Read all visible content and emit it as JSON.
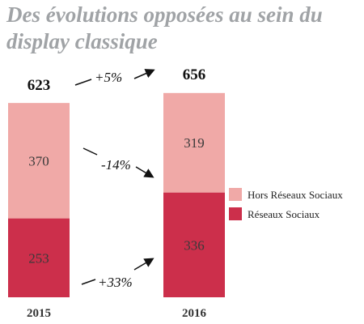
{
  "chart_data": {
    "type": "bar",
    "stacked": true,
    "title": "Des évolutions opposées au sein du display classique",
    "categories": [
      "2015",
      "2016"
    ],
    "series": [
      {
        "name": "Réseaux Sociaux",
        "values": [
          253,
          336
        ],
        "color": "#cc2f4b"
      },
      {
        "name": "Hors Réseaux Sociaux",
        "values": [
          370,
          319
        ],
        "color": "#f0a9a7"
      }
    ],
    "totals": [
      623,
      656
    ],
    "annotations": [
      "+5%",
      "-14%",
      "+33%"
    ],
    "legend_position": "right",
    "grid": false
  }
}
